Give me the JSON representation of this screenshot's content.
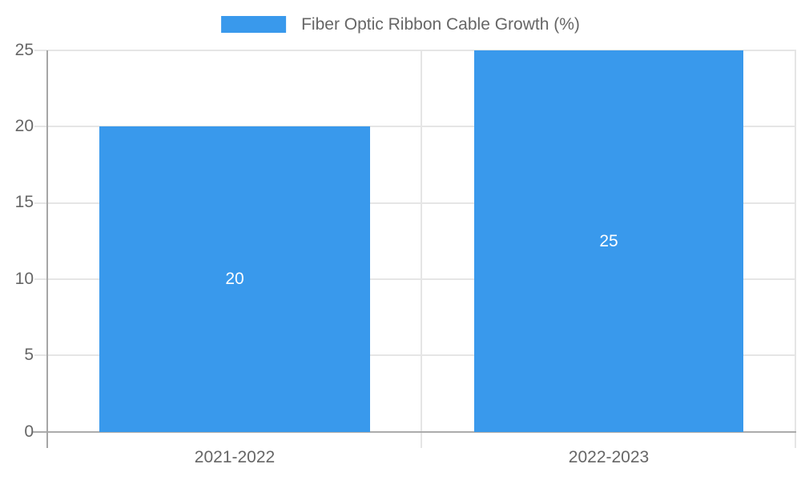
{
  "chart_data": {
    "type": "bar",
    "title": "Fiber Optic Ribbon Cable Growth (%)",
    "categories": [
      "2021-2022",
      "2022-2023"
    ],
    "values": [
      20,
      25
    ],
    "series": [
      {
        "name": "Fiber Optic Ribbon Cable Growth (%)",
        "values": [
          20,
          25
        ]
      }
    ],
    "xlabel": "",
    "ylabel": "",
    "ylim": [
      0,
      25
    ],
    "ytick_step": 5,
    "ytick_labels_top_to_bottom": [
      "25",
      "20",
      "15",
      "10",
      "5",
      "0"
    ],
    "bar_value_labels": [
      "20",
      "25"
    ],
    "legend_position": "top-center",
    "grid": "on",
    "colors": {
      "bar": "#3999EC",
      "grid_line": "#E5E5E5",
      "axis_line": "#A6A6A6",
      "zero_line": "#ABABAB",
      "tick_text": "#666666",
      "bar_label_text": "#FFFFFF",
      "background": "#FFFFFF"
    }
  }
}
